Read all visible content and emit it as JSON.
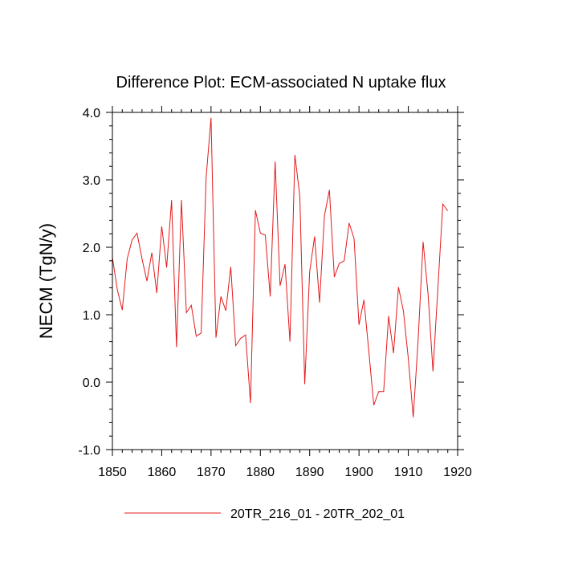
{
  "chart_data": {
    "type": "line",
    "title": "Difference Plot: ECM-associated N uptake flux",
    "xlabel": "",
    "ylabel": "NECM  (TgN/y)",
    "xlim": [
      1850,
      1920
    ],
    "ylim": [
      -1.0,
      4.0
    ],
    "x_ticks": [
      1850,
      1860,
      1870,
      1880,
      1890,
      1900,
      1910,
      1920
    ],
    "x_tick_labels": [
      "1850",
      "1860",
      "1870",
      "1880",
      "1890",
      "1900",
      "1910",
      "1920"
    ],
    "y_ticks": [
      -1.0,
      0.0,
      1.0,
      2.0,
      3.0,
      4.0
    ],
    "y_tick_labels": [
      "-1.0",
      "0.0",
      "1.0",
      "2.0",
      "3.0",
      "4.0"
    ],
    "grid": false,
    "legend_position": "bottom",
    "series": [
      {
        "name": "20TR_216_01 - 20TR_202_01",
        "color": "#e31a1c",
        "x": [
          1850,
          1851,
          1852,
          1853,
          1854,
          1855,
          1856,
          1857,
          1858,
          1859,
          1860,
          1861,
          1862,
          1863,
          1864,
          1865,
          1866,
          1867,
          1868,
          1869,
          1870,
          1871,
          1872,
          1873,
          1874,
          1875,
          1876,
          1877,
          1878,
          1879,
          1880,
          1881,
          1882,
          1883,
          1884,
          1885,
          1886,
          1887,
          1888,
          1889,
          1890,
          1891,
          1892,
          1893,
          1894,
          1895,
          1896,
          1897,
          1898,
          1899,
          1900,
          1901,
          1902,
          1903,
          1904,
          1905,
          1906,
          1907,
          1908,
          1909,
          1910,
          1911,
          1912,
          1913,
          1914,
          1915,
          1916,
          1917,
          1918
        ],
        "values": [
          1.85,
          1.37,
          1.07,
          1.83,
          2.11,
          2.21,
          1.83,
          1.5,
          1.92,
          1.32,
          2.31,
          1.7,
          2.7,
          0.52,
          2.7,
          1.03,
          1.14,
          0.68,
          0.73,
          3.03,
          3.92,
          0.66,
          1.27,
          1.06,
          1.71,
          0.54,
          0.65,
          0.7,
          -0.31,
          2.55,
          2.21,
          2.18,
          1.27,
          3.27,
          1.43,
          1.75,
          0.6,
          3.37,
          2.76,
          -0.03,
          1.64,
          2.16,
          1.18,
          2.47,
          2.85,
          1.56,
          1.76,
          1.8,
          2.36,
          2.13,
          0.85,
          1.22,
          0.45,
          -0.34,
          -0.14,
          -0.14,
          0.98,
          0.43,
          1.41,
          1.06,
          0.35,
          -0.52,
          0.64,
          2.08,
          1.31,
          0.16,
          1.4,
          2.64,
          2.54
        ]
      }
    ]
  }
}
